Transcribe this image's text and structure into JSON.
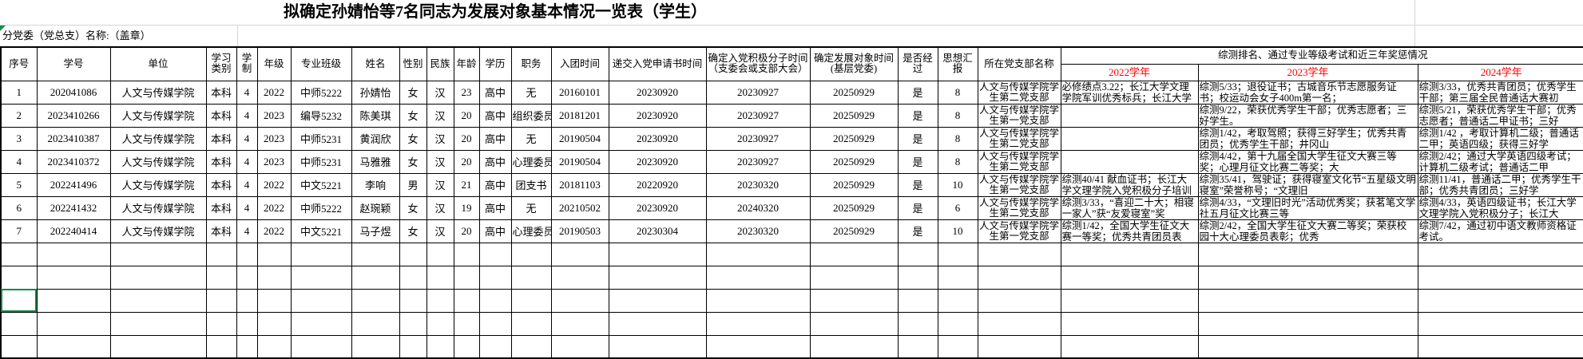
{
  "title": "拟确定孙婧怡等7名同志为发展对象基本情况一览表（学生）",
  "subtitle": "分党委（党总支）名称:（盖章）",
  "colors": {
    "year_header_red": "#ff0000",
    "selection_green": "#0c8a43",
    "grid_black": "#000000",
    "gridline_gray": "#d4d4d4"
  },
  "table": {
    "headers": {
      "seq": "序号",
      "sid": "学号",
      "unit": "单位",
      "category": "学习类别",
      "years": "学制",
      "grade": "年级",
      "class": "专业班级",
      "name": "姓名",
      "gender": "性别",
      "ethnic": "民族",
      "age": "年龄",
      "edu": "学历",
      "duty": "职务",
      "league": "入团时间",
      "apply": "递交入党申请书时间",
      "activist": "确定入党积极分子时间（支委会或支部大会）",
      "candidate": "确定发展对象时间(基层党委)",
      "passed": "是否经过",
      "reports": "思想汇报",
      "branch": "所在党支部名称",
      "span": "综测排名、通过专业等级考试和近三年奖惩情况",
      "y2022": "2022学年",
      "y2023": "2023学年",
      "y2024": "2024学年"
    },
    "field_order": [
      "seq",
      "sid",
      "unit",
      "category",
      "years",
      "grade",
      "class",
      "name",
      "gender",
      "ethnic",
      "age",
      "edu",
      "duty",
      "league",
      "apply",
      "activist",
      "candidate",
      "passed",
      "reports",
      "branch",
      "y2022",
      "y2023",
      "y2024"
    ],
    "empty_row_count": 5,
    "rows": [
      {
        "seq": "1",
        "sid": "202041086",
        "unit": "人文与传媒学院",
        "category": "本科",
        "years": "4",
        "grade": "2022",
        "class": "中师5222",
        "name": "孙婧怡",
        "gender": "女",
        "ethnic": "汉",
        "age": "23",
        "edu": "高中",
        "duty": "无",
        "league": "20160101",
        "apply": "20230920",
        "activist": "20230927",
        "candidate": "20250929",
        "passed": "是",
        "reports": "8",
        "branch": "人文与传媒学院学生第二党支部",
        "y2022": "必修绩点3.22；长江大学文理学院军训优秀标兵；长江大学",
        "y2023": "综测5/33；退役证书；古城音乐节志愿服务证书；校运动会女子400m第一名；",
        "y2024": "综测3/33，优秀共青团员；优秀学生干部；第三届全民普通话大赛初"
      },
      {
        "seq": "2",
        "sid": "2023410266",
        "unit": "人文与传媒学院",
        "category": "本科",
        "years": "4",
        "grade": "2023",
        "class": "编导5232",
        "name": "陈美琪",
        "gender": "女",
        "ethnic": "汉",
        "age": "20",
        "edu": "高中",
        "duty": "组织委员",
        "league": "20181201",
        "apply": "20230920",
        "activist": "20230927",
        "candidate": "20250929",
        "passed": "是",
        "reports": "8",
        "branch": "人文与传媒学院学生第一党支部",
        "y2022": "",
        "y2023": "综测9/22，荣获优秀学生干部；优秀志愿者；三好学生。",
        "y2024": "综测5/21，荣获优秀学生干部；优秀志愿者；普通话二甲证书；三好"
      },
      {
        "seq": "3",
        "sid": "2023410387",
        "unit": "人文与传媒学院",
        "category": "本科",
        "years": "4",
        "grade": "2023",
        "class": "中师5231",
        "name": "黄润欣",
        "gender": "女",
        "ethnic": "汉",
        "age": "20",
        "edu": "高中",
        "duty": "无",
        "league": "20190504",
        "apply": "20230920",
        "activist": "20230927",
        "candidate": "20250929",
        "passed": "是",
        "reports": "8",
        "branch": "人文与传媒学院学生第二党支部",
        "y2022": "",
        "y2023": "综测1/42，考取驾照；获得三好学生；优秀共青团员；优秀学生干部；井冈山",
        "y2024": "综测1/42 ，考取计算机二级；普通话二甲；英语四级；获得三好学"
      },
      {
        "seq": "4",
        "sid": "2023410372",
        "unit": "人文与传媒学院",
        "category": "本科",
        "years": "4",
        "grade": "2023",
        "class": "中师5231",
        "name": "马雅雅",
        "gender": "女",
        "ethnic": "汉",
        "age": "20",
        "edu": "高中",
        "duty": "心理委员",
        "league": "20190504",
        "apply": "20230920",
        "activist": "20230927",
        "candidate": "20250929",
        "passed": "是",
        "reports": "8",
        "branch": "人文与传媒学院学生第二党支部",
        "y2022": "",
        "y2023": "综测4/42，第十九届全国大学生征文大赛三等奖；心理月征文比赛二等奖；大",
        "y2024": "综测2/42；通过大学英语四级考试；计算机二级考试；普通话二甲"
      },
      {
        "seq": "5",
        "sid": "202241496",
        "unit": "人文与传媒学院",
        "category": "本科",
        "years": "4",
        "grade": "2022",
        "class": "中文5221",
        "name": "李响",
        "gender": "男",
        "ethnic": "汉",
        "age": "21",
        "edu": "高中",
        "duty": "团支书",
        "league": "20181103",
        "apply": "20220920",
        "activist": "20230320",
        "candidate": "20250929",
        "passed": "是",
        "reports": "10",
        "branch": "人文与传媒学院学生第一党支部",
        "y2022": "综测40/41 献血证书；长江大学文理学院入党积极分子培训",
        "y2023": "综测35/41，驾驶证；获得寝室文化节“五星级文明寝室”荣誉称号；“文理旧",
        "y2024": "综测11/41，普通话二甲；优秀学生干部；优秀共青团员；三好学"
      },
      {
        "seq": "6",
        "sid": "202241432",
        "unit": "人文与传媒学院",
        "category": "本科",
        "years": "4",
        "grade": "2022",
        "class": "中师5222",
        "name": "赵琬颖",
        "gender": "女",
        "ethnic": "汉",
        "age": "19",
        "edu": "高中",
        "duty": "无",
        "league": "20210502",
        "apply": "20230920",
        "activist": "20240320",
        "candidate": "20250929",
        "passed": "是",
        "reports": "6",
        "branch": "人文与传媒学院学生第二党支部",
        "y2022": "综测3/33，“喜迎二十大；相寝一家人”获“友爱寝室”奖",
        "y2023": "综测4/33，“文理旧时光”活动优秀奖；获茗笔文学社五月征文比赛三等",
        "y2024": "综测4/33，英语四级证书；长江大学文理学院入党积极分子；长江大"
      },
      {
        "seq": "7",
        "sid": "202240414",
        "unit": "人文与传媒学院",
        "category": "本科",
        "years": "4",
        "grade": "2022",
        "class": "中文5221",
        "name": "马子煜",
        "gender": "女",
        "ethnic": "汉",
        "age": "20",
        "edu": "高中",
        "duty": "心理委员",
        "league": "20190503",
        "apply": "20230304",
        "activist": "20230320",
        "candidate": "20250929",
        "passed": "是",
        "reports": "10",
        "branch": "人文与传媒学院学生第一党支部",
        "y2022": "综测1/42，全国大学生征文大赛一等奖；优秀共青团员表",
        "y2023": "综测2/42，全国大学生征文大赛二等奖；荣获校园十大心理委员表彰；优秀",
        "y2024": "综测7/42，通过初中语文教师资格证考试。"
      }
    ]
  }
}
